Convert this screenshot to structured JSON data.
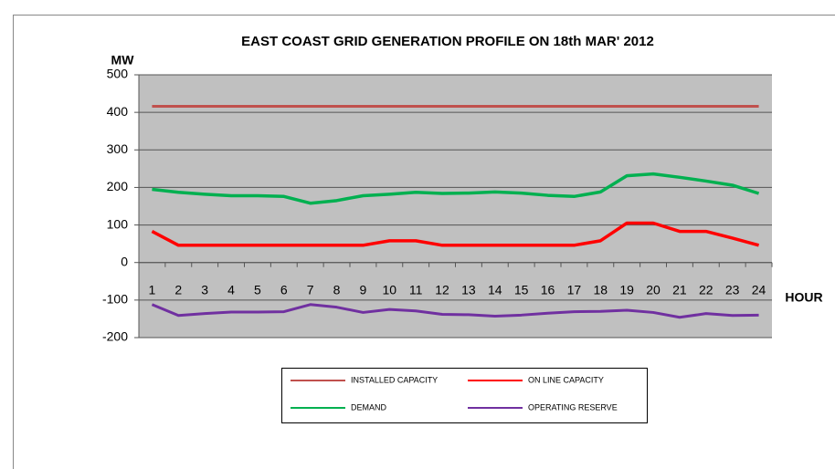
{
  "chart_data": {
    "type": "line",
    "title": "EAST COAST GRID GENERATION PROFILE ON 18th MAR' 2012",
    "y_label": "MW",
    "x_label": "HOUR",
    "categories": [
      "1",
      "2",
      "3",
      "4",
      "5",
      "6",
      "7",
      "8",
      "9",
      "10",
      "11",
      "12",
      "13",
      "14",
      "15",
      "16",
      "17",
      "18",
      "19",
      "20",
      "21",
      "22",
      "23",
      "24"
    ],
    "ylim": [
      -200,
      500
    ],
    "yticks": [
      -200,
      -100,
      0,
      100,
      200,
      300,
      400,
      500
    ],
    "grid": true,
    "legend": "bottom",
    "series": [
      {
        "name": "INSTALLED CAPACITY",
        "color": "#c0504d",
        "values": [
          416,
          416,
          416,
          416,
          416,
          416,
          416,
          416,
          416,
          416,
          416,
          416,
          416,
          416,
          416,
          416,
          416,
          416,
          416,
          416,
          416,
          416,
          416,
          416
        ]
      },
      {
        "name": "ON LINE CAPACITY",
        "color": "#ff0000",
        "values": [
          83,
          46,
          46,
          46,
          46,
          46,
          46,
          46,
          46,
          58,
          58,
          46,
          46,
          46,
          46,
          46,
          46,
          58,
          105,
          105,
          83,
          83,
          65,
          46
        ]
      },
      {
        "name": "DEMAND",
        "color": "#00b050",
        "values": [
          195,
          187,
          182,
          178,
          178,
          176,
          158,
          165,
          178,
          182,
          187,
          184,
          185,
          188,
          185,
          179,
          176,
          188,
          231,
          236,
          227,
          217,
          206,
          184
        ]
      },
      {
        "name": "OPERATING RESERVE",
        "color": "#7030a0",
        "values": [
          -112,
          -141,
          -136,
          -132,
          -132,
          -131,
          -112,
          -119,
          -133,
          -125,
          -129,
          -138,
          -139,
          -143,
          -140,
          -135,
          -131,
          -130,
          -127,
          -133,
          -146,
          -136,
          -141,
          -140
        ]
      }
    ]
  }
}
